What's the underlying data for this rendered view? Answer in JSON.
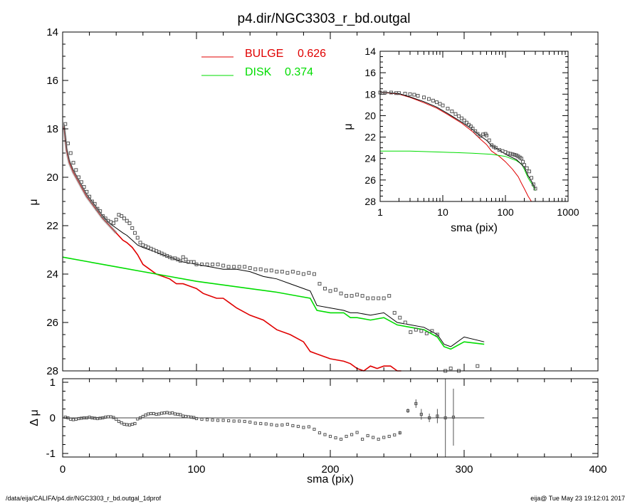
{
  "title": "p4.dir/NGC3303_r_bd.outgal",
  "footer_left": "/data/eija/CALIFA/p4.dir/NGC3303_r_bd.outgal_1dprof",
  "footer_right": "eija@  Tue May 23 19:12:01 2017",
  "colors": {
    "bulge": "#e00000",
    "disk": "#00dd00",
    "total": "#000000",
    "data": "#555555"
  },
  "legend": [
    {
      "label": "BULGE",
      "value": "0.626",
      "color": "#e00000"
    },
    {
      "label": "DISK",
      "value": "0.374",
      "color": "#00dd00"
    }
  ],
  "chart_data": [
    {
      "id": "main",
      "type": "line",
      "xlabel": "",
      "ylabel": "μ",
      "xlim": [
        0,
        400
      ],
      "ylim": [
        28,
        14
      ],
      "y_inverted": true,
      "yticks": [
        14,
        16,
        18,
        20,
        22,
        24,
        26,
        28
      ],
      "series": [
        {
          "name": "BULGE",
          "role": "bulge",
          "color": "#e00000",
          "x": [
            1,
            3,
            5,
            8,
            10,
            14,
            18,
            22,
            26,
            30,
            35,
            40,
            45,
            48,
            52,
            56,
            60,
            65,
            70,
            75,
            80,
            85,
            90,
            95,
            100,
            105,
            110,
            115,
            120,
            125,
            130,
            140,
            150,
            160,
            170,
            180,
            185,
            190,
            195,
            200,
            210,
            215,
            220,
            225,
            230,
            235,
            240,
            245,
            250,
            253
          ],
          "y": [
            17.9,
            18.9,
            19.4,
            19.8,
            20.0,
            20.4,
            20.8,
            21.1,
            21.4,
            21.7,
            22.0,
            22.3,
            22.6,
            22.7,
            22.9,
            23.2,
            23.6,
            23.8,
            24.0,
            24.1,
            24.2,
            24.4,
            24.4,
            24.5,
            24.6,
            24.8,
            24.9,
            25.0,
            25.0,
            25.2,
            25.4,
            25.7,
            25.9,
            26.3,
            26.5,
            26.8,
            27.2,
            27.3,
            27.4,
            27.5,
            27.6,
            27.7,
            27.9,
            28.0,
            27.8,
            27.9,
            27.8,
            27.8,
            28.0,
            28.0
          ]
        },
        {
          "name": "DISK",
          "role": "disk",
          "color": "#00dd00",
          "x": [
            0,
            20,
            40,
            60,
            80,
            100,
            120,
            140,
            160,
            175,
            185,
            190,
            200,
            210,
            215,
            220,
            230,
            240,
            250,
            260,
            270,
            280,
            285,
            290,
            300,
            315
          ],
          "y": [
            23.3,
            23.5,
            23.7,
            23.9,
            24.1,
            24.3,
            24.45,
            24.6,
            24.75,
            24.9,
            25.0,
            25.5,
            25.6,
            25.6,
            25.8,
            25.8,
            25.9,
            25.8,
            26.1,
            26.2,
            26.3,
            26.6,
            27.0,
            27.1,
            26.8,
            26.9
          ]
        },
        {
          "name": "TOTAL",
          "role": "total",
          "color": "#000000",
          "x": [
            1,
            3,
            5,
            8,
            10,
            14,
            18,
            22,
            26,
            30,
            35,
            40,
            45,
            48,
            52,
            56,
            60,
            65,
            70,
            80,
            90,
            100,
            110,
            120,
            130,
            140,
            150,
            160,
            170,
            180,
            185,
            190,
            200,
            210,
            215,
            220,
            230,
            240,
            250,
            260,
            270,
            280,
            285,
            290,
            300,
            315
          ],
          "y": [
            17.8,
            18.8,
            19.3,
            19.7,
            19.9,
            20.3,
            20.7,
            21.0,
            21.3,
            21.6,
            21.9,
            22.1,
            22.3,
            22.4,
            22.6,
            22.8,
            22.9,
            23.0,
            23.1,
            23.3,
            23.5,
            23.6,
            23.7,
            23.8,
            23.8,
            23.9,
            24.1,
            24.2,
            24.4,
            24.6,
            24.7,
            25.3,
            25.4,
            25.5,
            25.6,
            25.6,
            25.7,
            25.6,
            26.0,
            26.1,
            26.2,
            26.5,
            26.9,
            27.0,
            26.6,
            26.8
          ]
        },
        {
          "name": "DATA",
          "role": "data",
          "color": "#555555",
          "x": [
            2,
            4,
            6,
            8,
            10,
            12,
            14,
            16,
            18,
            20,
            22,
            24,
            26,
            28,
            30,
            32,
            34,
            36,
            38,
            40,
            42,
            44,
            46,
            48,
            50,
            52,
            54,
            56,
            58,
            60,
            62,
            64,
            66,
            68,
            70,
            72,
            74,
            76,
            78,
            80,
            82,
            84,
            86,
            88,
            90,
            92,
            94,
            96,
            98,
            100,
            104,
            108,
            112,
            116,
            120,
            124,
            128,
            132,
            136,
            140,
            144,
            148,
            152,
            156,
            160,
            164,
            168,
            172,
            176,
            180,
            184,
            188,
            192,
            196,
            200,
            204,
            208,
            212,
            216,
            220,
            224,
            228,
            232,
            236,
            240,
            244,
            248,
            252,
            256,
            260,
            264,
            268,
            272,
            276,
            280,
            286,
            290,
            296,
            310
          ],
          "y": [
            17.8,
            18.6,
            19.0,
            19.4,
            19.7,
            20.0,
            20.2,
            20.4,
            20.6,
            20.8,
            21.0,
            21.1,
            21.3,
            21.4,
            21.6,
            21.7,
            21.8,
            21.85,
            21.9,
            21.75,
            21.55,
            21.6,
            21.7,
            21.8,
            21.9,
            22.1,
            22.3,
            22.5,
            22.7,
            22.8,
            22.85,
            22.9,
            22.95,
            23.0,
            23.05,
            23.1,
            23.15,
            23.2,
            23.25,
            23.3,
            23.35,
            23.35,
            23.4,
            23.45,
            23.3,
            23.4,
            23.5,
            23.5,
            23.5,
            23.6,
            23.6,
            23.6,
            23.6,
            23.6,
            23.65,
            23.7,
            23.7,
            23.7,
            23.7,
            23.75,
            23.8,
            23.8,
            23.85,
            23.85,
            23.9,
            23.9,
            23.95,
            23.9,
            23.95,
            24.0,
            23.95,
            24.0,
            24.4,
            24.6,
            24.7,
            24.65,
            24.8,
            24.9,
            24.9,
            24.85,
            24.9,
            25.0,
            25.0,
            25.0,
            25.0,
            24.9,
            25.6,
            25.8,
            26.0,
            26.4,
            26.3,
            26.35,
            26.45,
            26.35,
            26.5,
            28.0,
            27.9,
            28.0,
            27.8
          ]
        }
      ]
    },
    {
      "id": "residual",
      "type": "scatter",
      "xlabel": "sma (pix)",
      "ylabel": "Δ μ",
      "xlim": [
        0,
        400
      ],
      "ylim": [
        -1.1,
        1.1
      ],
      "xticks": [
        0,
        100,
        200,
        300,
        400
      ],
      "yticks": [
        -1,
        0,
        1
      ],
      "points": {
        "x": [
          2,
          4,
          6,
          8,
          10,
          12,
          14,
          16,
          18,
          20,
          22,
          24,
          26,
          28,
          30,
          32,
          34,
          36,
          38,
          40,
          42,
          44,
          46,
          48,
          50,
          52,
          54,
          56,
          58,
          60,
          62,
          64,
          66,
          68,
          70,
          72,
          74,
          76,
          78,
          80,
          82,
          84,
          86,
          88,
          90,
          92,
          94,
          96,
          98,
          100,
          104,
          108,
          112,
          116,
          120,
          124,
          128,
          132,
          136,
          140,
          144,
          148,
          152,
          156,
          160,
          164,
          168,
          172,
          176,
          180,
          184,
          188,
          192,
          196,
          200,
          204,
          208,
          212,
          216,
          220,
          224,
          228,
          232,
          236,
          240,
          244,
          248,
          252,
          258,
          264,
          268,
          274,
          280,
          286,
          292
        ],
        "y": [
          0.02,
          0.0,
          -0.04,
          -0.05,
          -0.04,
          -0.02,
          -0.01,
          0.0,
          0.0,
          0.02,
          0.0,
          -0.01,
          -0.02,
          -0.01,
          0.0,
          0.02,
          0.03,
          0.03,
          0.01,
          -0.04,
          -0.1,
          -0.14,
          -0.18,
          -0.19,
          -0.2,
          -0.18,
          -0.16,
          -0.03,
          0.0,
          0.04,
          0.08,
          0.11,
          0.12,
          0.12,
          0.1,
          0.11,
          0.13,
          0.14,
          0.15,
          0.13,
          0.14,
          0.11,
          0.1,
          0.09,
          0.05,
          0.04,
          0.03,
          0.02,
          0.01,
          -0.02,
          -0.04,
          -0.05,
          -0.06,
          -0.07,
          -0.07,
          -0.08,
          -0.09,
          -0.09,
          -0.1,
          -0.12,
          -0.15,
          -0.16,
          -0.17,
          -0.19,
          -0.21,
          -0.2,
          -0.18,
          -0.22,
          -0.24,
          -0.27,
          -0.25,
          -0.32,
          -0.42,
          -0.47,
          -0.52,
          -0.56,
          -0.6,
          -0.52,
          -0.47,
          -0.41,
          -0.6,
          -0.5,
          -0.55,
          -0.6,
          -0.55,
          -0.52,
          -0.48,
          -0.42,
          0.2,
          0.4,
          0.1,
          0.0,
          0.05,
          0.0,
          0.02
        ],
        "err": [
          0,
          0,
          0,
          0,
          0,
          0,
          0,
          0,
          0,
          0,
          0,
          0,
          0,
          0,
          0,
          0,
          0,
          0,
          0,
          0,
          0,
          0,
          0,
          0,
          0,
          0,
          0,
          0,
          0,
          0,
          0,
          0,
          0,
          0,
          0,
          0,
          0,
          0,
          0,
          0,
          0,
          0,
          0,
          0,
          0,
          0,
          0,
          0,
          0,
          0,
          0,
          0,
          0,
          0,
          0,
          0,
          0,
          0,
          0,
          0,
          0,
          0,
          0,
          0,
          0,
          0,
          0,
          0,
          0,
          0,
          0,
          0,
          0,
          0,
          0,
          0,
          0,
          0,
          0,
          0,
          0,
          0,
          0,
          0,
          0,
          0,
          0,
          0.05,
          0.06,
          0.12,
          0.15,
          0.12,
          0.2,
          1.4,
          0.8
        ]
      }
    },
    {
      "id": "inset",
      "type": "line",
      "xlabel": "sma (pix)",
      "ylabel": "μ",
      "xscale": "log",
      "xlim": [
        1,
        1000
      ],
      "ylim": [
        28,
        14
      ],
      "y_inverted": true,
      "xticks": [
        1,
        10,
        100,
        1000
      ],
      "yticks": [
        14,
        16,
        18,
        20,
        22,
        24,
        26,
        28
      ],
      "series": [
        {
          "name": "BULGE",
          "role": "bulge",
          "color": "#e00000",
          "x": [
            1,
            2,
            3,
            5,
            8,
            12,
            20,
            30,
            40,
            50,
            60,
            80,
            100,
            130,
            160,
            180,
            200,
            230,
            260,
            300
          ],
          "y": [
            17.8,
            18.0,
            18.3,
            18.8,
            19.3,
            19.9,
            20.7,
            21.5,
            22.2,
            22.7,
            23.3,
            23.8,
            24.3,
            25.0,
            25.7,
            26.3,
            26.8,
            27.5,
            28.0,
            28.0
          ]
        },
        {
          "name": "DISK",
          "role": "disk",
          "color": "#00dd00",
          "x": [
            1,
            3,
            10,
            30,
            60,
            100,
            150,
            180,
            200,
            230,
            260,
            300
          ],
          "y": [
            23.3,
            23.3,
            23.4,
            23.5,
            23.6,
            23.8,
            24.2,
            24.5,
            25.0,
            25.8,
            26.3,
            27.0
          ]
        },
        {
          "name": "TOTAL",
          "role": "total",
          "color": "#000000",
          "x": [
            1,
            2,
            3,
            5,
            8,
            12,
            20,
            30,
            40,
            50,
            60,
            80,
            100,
            150,
            200,
            230,
            260,
            300
          ],
          "y": [
            17.8,
            17.95,
            18.25,
            18.7,
            19.2,
            19.8,
            20.6,
            21.3,
            21.9,
            22.3,
            22.8,
            23.2,
            23.6,
            24.1,
            24.8,
            25.6,
            26.1,
            26.8
          ]
        },
        {
          "name": "DATA",
          "role": "data",
          "color": "#555555",
          "x": [
            1,
            1.2,
            1.5,
            1.8,
            2,
            2.5,
            3,
            3.5,
            4,
            5,
            6,
            7,
            8,
            9,
            10,
            12,
            14,
            16,
            18,
            20,
            22,
            24,
            26,
            28,
            30,
            33,
            36,
            40,
            44,
            48,
            50,
            55,
            60,
            65,
            70,
            80,
            90,
            100,
            110,
            120,
            130,
            140,
            150,
            160,
            170,
            180,
            190,
            200,
            220,
            240,
            260,
            280,
            300
          ],
          "y": [
            17.85,
            17.85,
            17.85,
            17.9,
            17.9,
            17.95,
            18.0,
            18.05,
            18.15,
            18.3,
            18.45,
            18.6,
            18.75,
            18.9,
            19.05,
            19.35,
            19.6,
            19.85,
            20.05,
            20.25,
            20.45,
            20.65,
            20.85,
            21.0,
            21.2,
            21.45,
            21.7,
            21.9,
            21.75,
            21.7,
            21.85,
            22.3,
            22.75,
            22.9,
            23.0,
            23.2,
            23.3,
            23.4,
            23.5,
            23.55,
            23.6,
            23.65,
            23.7,
            23.8,
            23.9,
            24.0,
            24.3,
            24.6,
            24.9,
            25.2,
            25.8,
            26.4,
            26.8
          ]
        }
      ]
    }
  ]
}
